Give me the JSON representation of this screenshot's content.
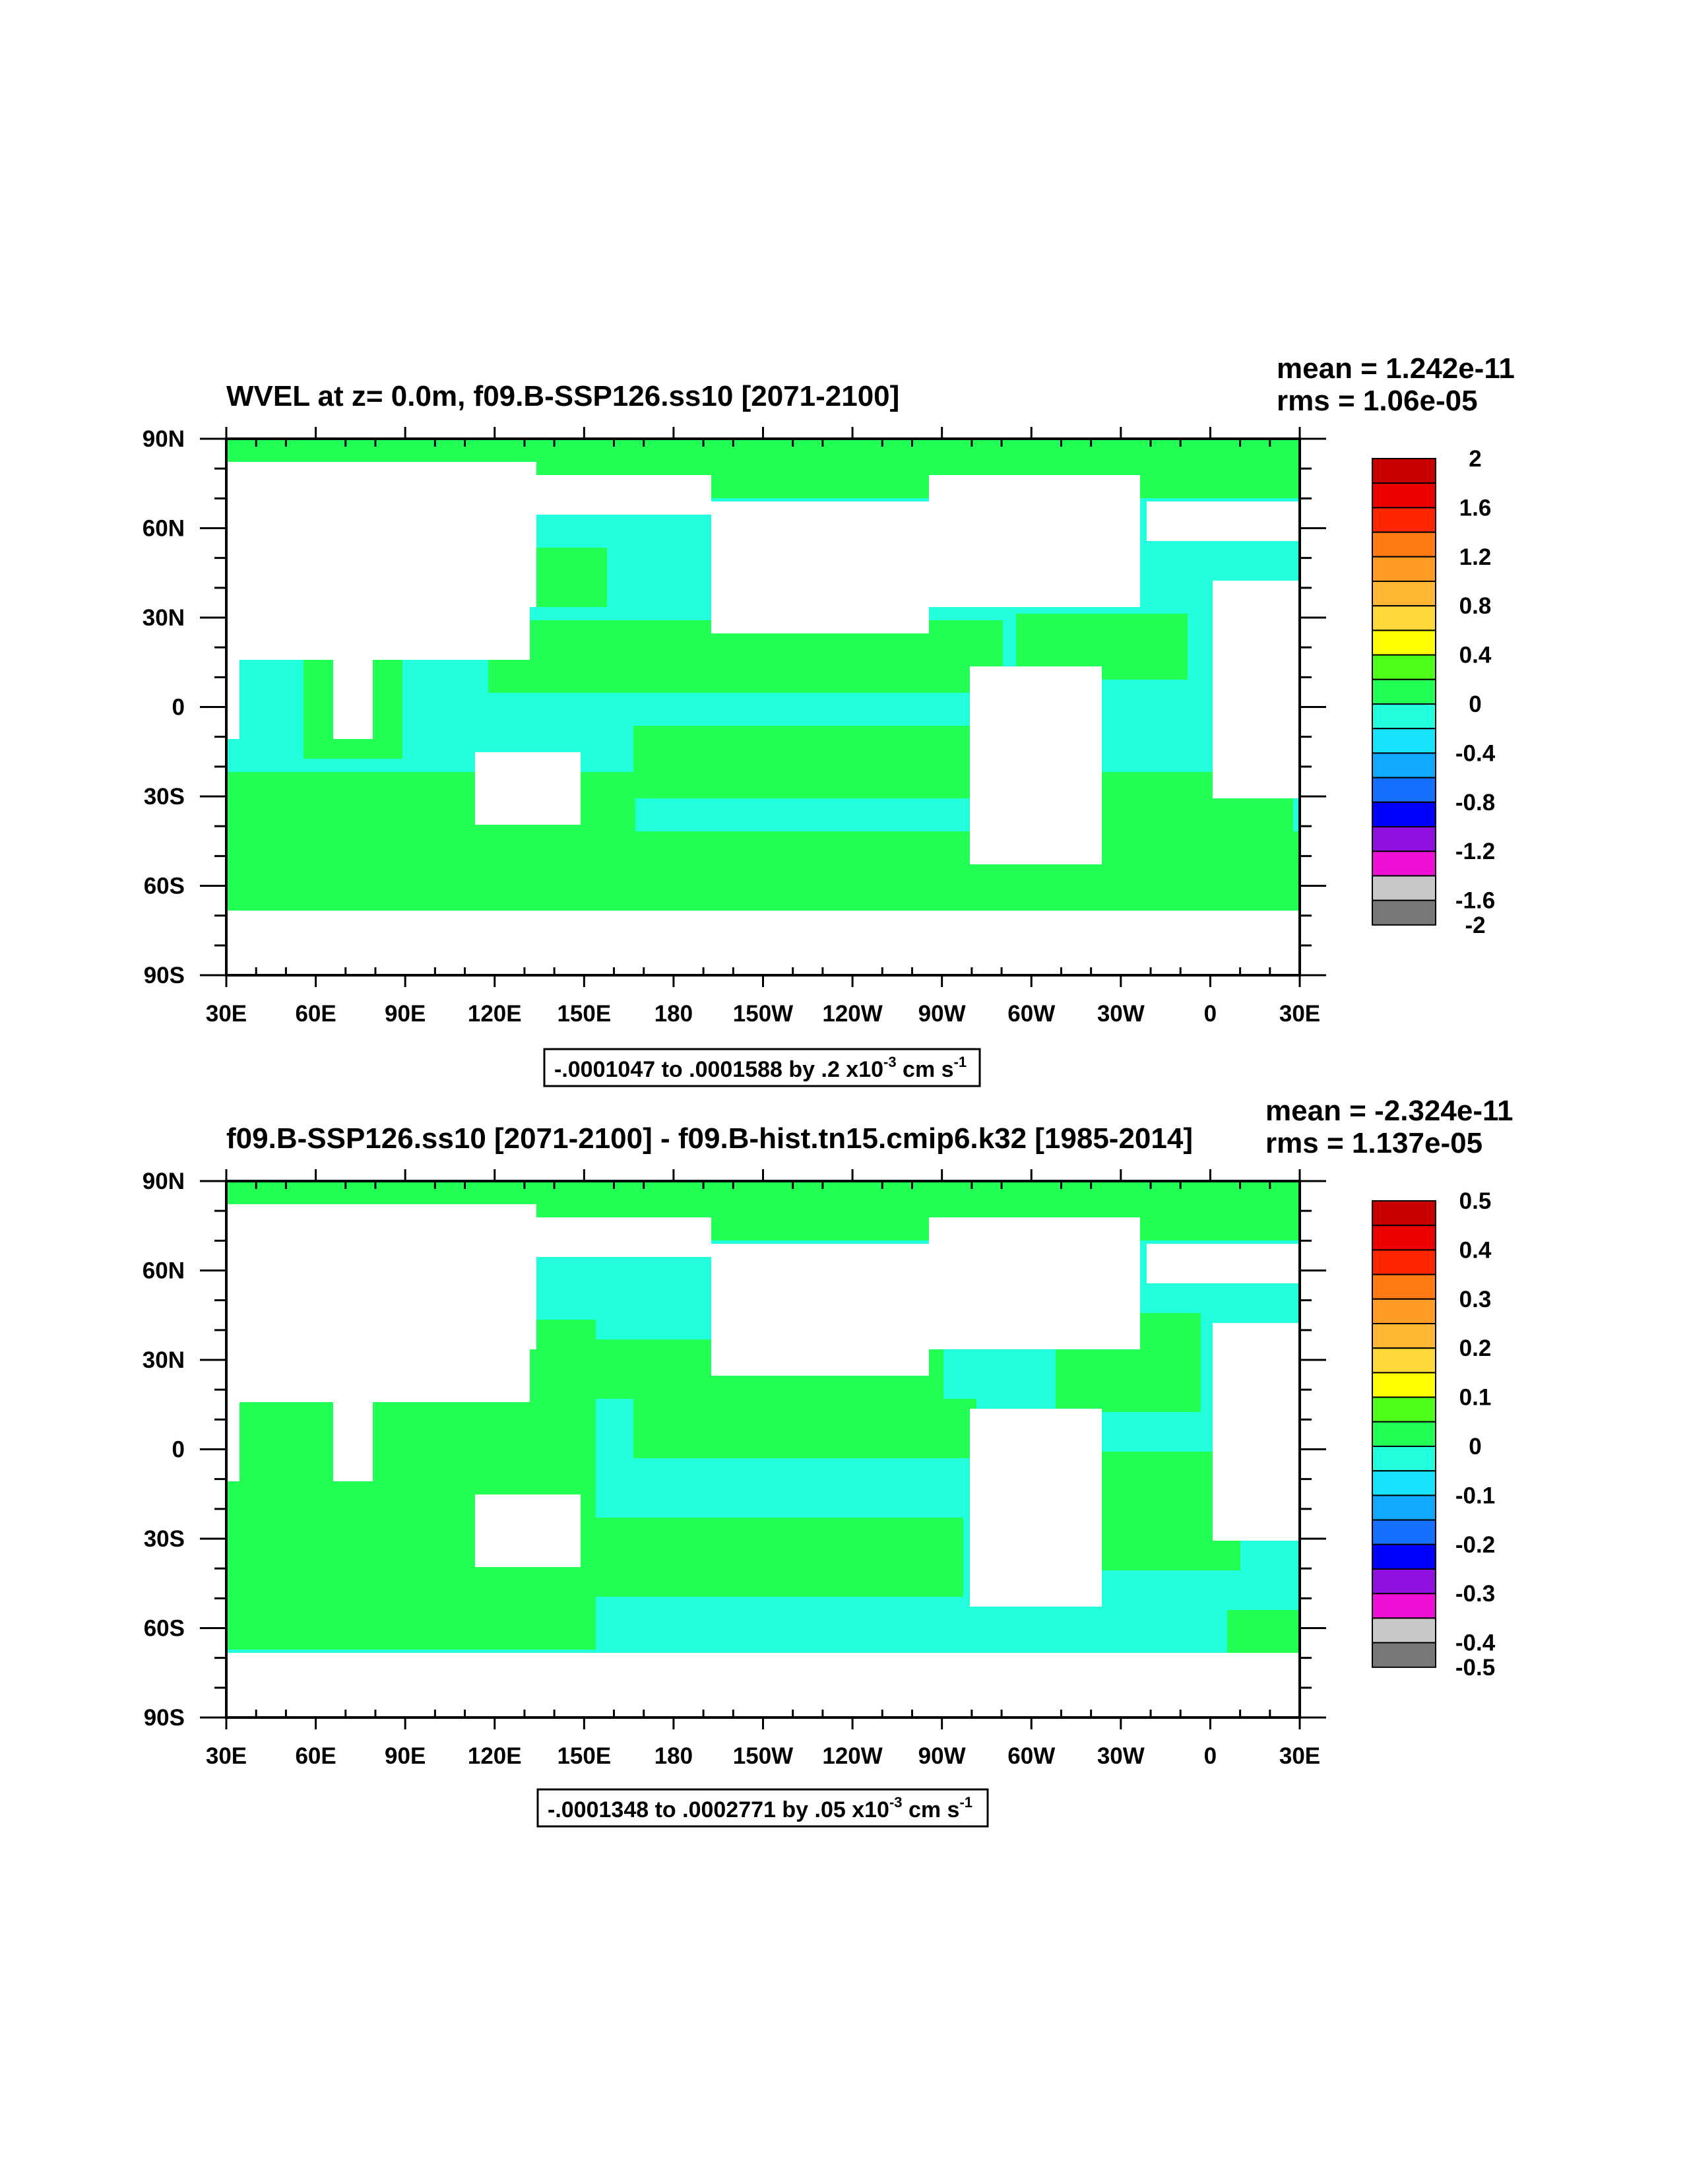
{
  "chart_data": [
    {
      "type": "heatmap",
      "title_left": "WVEL at z=   0.0m, f09.B-SSP126.ss10 [2071-2100]",
      "stats": {
        "mean": "mean = 1.242e-11",
        "rms": "rms = 1.06e-05"
      },
      "x_ticks": [
        "30E",
        "60E",
        "90E",
        "120E",
        "150E",
        "180",
        "150W",
        "120W",
        "90W",
        "60W",
        "30W",
        "0",
        "30E"
      ],
      "y_ticks": [
        "90N",
        "60N",
        "30N",
        "0",
        "30S",
        "60S",
        "90S"
      ],
      "xlim": [
        30,
        390
      ],
      "ylim": [
        -90,
        90
      ],
      "colorbar_labels": [
        "2",
        "1.6",
        "1.2",
        "0.8",
        "0.4",
        "0",
        "-0.4",
        "-0.8",
        "-1.2",
        "-1.6",
        "-2"
      ],
      "range_label": {
        "main": "-.0001047 to .0001588 by .2 x10",
        "exp": "-3",
        "unit": " cm s",
        "unit_exp": "-1"
      },
      "field": {
        "near_zero_positive": "#22ff55",
        "near_zero_negative": "#22ffdd",
        "land": "#ffffff"
      }
    },
    {
      "type": "heatmap",
      "title_left": "f09.B-SSP126.ss10 [2071-2100] - f09.B-hist.tn15.cmip6.k32 [1985-2014]",
      "stats": {
        "mean": "mean = -2.324e-11",
        "rms": "rms = 1.137e-05"
      },
      "x_ticks": [
        "30E",
        "60E",
        "90E",
        "120E",
        "150E",
        "180",
        "150W",
        "120W",
        "90W",
        "60W",
        "30W",
        "0",
        "30E"
      ],
      "y_ticks": [
        "90N",
        "60N",
        "30N",
        "0",
        "30S",
        "60S",
        "90S"
      ],
      "xlim": [
        30,
        390
      ],
      "ylim": [
        -90,
        90
      ],
      "colorbar_labels": [
        "0.5",
        "0.4",
        "0.3",
        "0.2",
        "0.1",
        "0",
        "-0.1",
        "-0.2",
        "-0.3",
        "-0.4",
        "-0.5"
      ],
      "range_label": {
        "main": "-.0001348 to .0002771 by .05 x10",
        "exp": "-3",
        "unit": " cm s",
        "unit_exp": "-1"
      },
      "field": {
        "near_zero_positive": "#22ff55",
        "near_zero_negative": "#22ffdd",
        "land": "#ffffff"
      }
    }
  ],
  "colorbar_colors": [
    "#c80000",
    "#ec0000",
    "#ff2600",
    "#ff7a13",
    "#ff9c26",
    "#ffb733",
    "#ffd83a",
    "#ffff00",
    "#4cff18",
    "#22ff55",
    "#22ffdd",
    "#18e3ff",
    "#10a9ff",
    "#1670ff",
    "#0000ff",
    "#9010e0",
    "#ee10d4",
    "#c8c8c8",
    "#787878"
  ]
}
